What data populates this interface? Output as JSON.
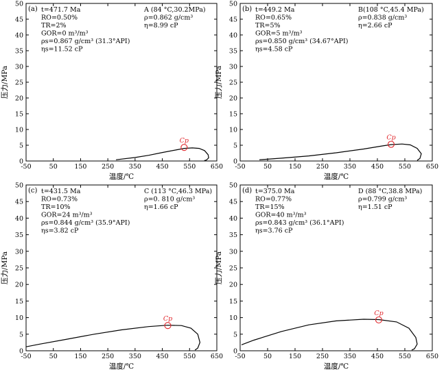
{
  "chart_data": [
    {
      "type": "line",
      "panel_label": "(a)",
      "xlabel": "温度/℃",
      "ylabel": "压力/MPa",
      "xlim": [
        -50,
        650
      ],
      "ylim": [
        0,
        50
      ],
      "x_ticks": [
        -50,
        50,
        150,
        250,
        350,
        450,
        550,
        650
      ],
      "y_ticks": [
        0,
        5,
        10,
        15,
        20,
        25,
        30,
        35,
        40,
        45,
        50
      ],
      "params": [
        "t=471.7 Ma",
        "RO=0.50%",
        "TR=2%",
        "GOR=0 m³/m³",
        "ρs=0.867 g/cm³ (31.3°API)",
        "ηs=11.52 cP"
      ],
      "reservoir": [
        "A (84 °C,30.2MPa)",
        "ρ=0.862 g/cm³",
        "η=8.99 cP"
      ],
      "critical_point": {
        "label": "Cp",
        "x": 530,
        "y": 4.3
      },
      "envelope": [
        [
          280,
          0.4
        ],
        [
          350,
          1.1
        ],
        [
          400,
          1.8
        ],
        [
          450,
          2.7
        ],
        [
          500,
          3.5
        ],
        [
          530,
          4.0
        ],
        [
          560,
          4.15
        ],
        [
          585,
          4.0
        ],
        [
          605,
          3.3
        ],
        [
          618,
          2.0
        ],
        [
          620,
          1.0
        ],
        [
          612,
          0.3
        ],
        [
          604,
          0.1
        ]
      ]
    },
    {
      "type": "line",
      "panel_label": "(b)",
      "xlabel": "温度/℃",
      "ylabel": "压力/MPa",
      "xlim": [
        -50,
        650
      ],
      "ylim": [
        0,
        50
      ],
      "x_ticks": [
        -50,
        50,
        150,
        250,
        350,
        450,
        550,
        650
      ],
      "y_ticks": [
        0,
        5,
        10,
        15,
        20,
        25,
        30,
        35,
        40,
        45,
        50
      ],
      "params": [
        "t=449.2 Ma",
        "RO=0.65%",
        "TR=5%",
        "GOR=5 m³/m³",
        "ρs=0.850 g/cm³ (34.67°API)",
        "ηs=4.58 cP"
      ],
      "reservoir": [
        "B(108 °C,45.4 MPa)",
        "ρ=0.838 g/cm³",
        "η=2.66 cP"
      ],
      "critical_point": {
        "label": "Cp",
        "x": 500,
        "y": 5.3
      },
      "envelope": [
        [
          20,
          0.4
        ],
        [
          100,
          0.9
        ],
        [
          200,
          1.6
        ],
        [
          300,
          2.6
        ],
        [
          400,
          3.8
        ],
        [
          470,
          4.8
        ],
        [
          500,
          5.2
        ],
        [
          540,
          5.4
        ],
        [
          570,
          5.1
        ],
        [
          595,
          4.0
        ],
        [
          610,
          2.3
        ],
        [
          605,
          0.8
        ],
        [
          595,
          0.2
        ]
      ]
    },
    {
      "type": "line",
      "panel_label": "(c)",
      "xlabel": "温度/℃",
      "ylabel": "压力/MPa",
      "xlim": [
        -50,
        650
      ],
      "ylim": [
        0,
        50
      ],
      "x_ticks": [
        -50,
        50,
        150,
        250,
        350,
        450,
        550,
        650
      ],
      "y_ticks": [
        0,
        5,
        10,
        15,
        20,
        25,
        30,
        35,
        40,
        45,
        50
      ],
      "params": [
        "t=431.5 Ma",
        "RO=0.73%",
        "TR=10%",
        "GOR=24 m³/m³",
        "ρs=0.844 g/cm³ (35.9°API)",
        "ηs=3.82 cP"
      ],
      "reservoir": [
        "C (113 °C,46.3 MPa)",
        "ρ=0. 810 g/cm³",
        "η=1.66 cP"
      ],
      "critical_point": {
        "label": "Cp",
        "x": 470,
        "y": 7.6
      },
      "envelope": [
        [
          -50,
          1.2
        ],
        [
          0,
          2.0
        ],
        [
          100,
          3.5
        ],
        [
          200,
          5.0
        ],
        [
          300,
          6.3
        ],
        [
          400,
          7.3
        ],
        [
          470,
          7.7
        ],
        [
          520,
          7.6
        ],
        [
          555,
          6.8
        ],
        [
          580,
          5.0
        ],
        [
          588,
          2.5
        ],
        [
          580,
          0.8
        ],
        [
          570,
          0.2
        ]
      ]
    },
    {
      "type": "line",
      "panel_label": "(d)",
      "xlabel": "温度/℃",
      "ylabel": "压力/MPa",
      "xlim": [
        -50,
        650
      ],
      "ylim": [
        0,
        50
      ],
      "x_ticks": [
        -50,
        50,
        150,
        250,
        350,
        450,
        550,
        650
      ],
      "y_ticks": [
        0,
        5,
        10,
        15,
        20,
        25,
        30,
        35,
        40,
        45,
        50
      ],
      "params": [
        "t=375.0 Ma",
        "RO=0.77%",
        "TR=15%",
        "GOR=40 m³/m³",
        "ρs=0.843 g/cm³ (36.1°API)",
        "ηs=3.76 cP"
      ],
      "reservoir": [
        "D (88 °C,38.8 MPa)",
        "ρ=0.799 g/cm³",
        "η=1.51 cP"
      ],
      "critical_point": {
        "label": "Cp",
        "x": 455,
        "y": 9.3
      },
      "envelope": [
        [
          -45,
          1.8
        ],
        [
          0,
          3.2
        ],
        [
          100,
          5.8
        ],
        [
          200,
          7.8
        ],
        [
          300,
          9.0
        ],
        [
          400,
          9.5
        ],
        [
          455,
          9.4
        ],
        [
          520,
          8.7
        ],
        [
          565,
          6.8
        ],
        [
          590,
          4.0
        ],
        [
          595,
          2.0
        ],
        [
          585,
          0.6
        ],
        [
          575,
          0.2
        ]
      ]
    }
  ]
}
